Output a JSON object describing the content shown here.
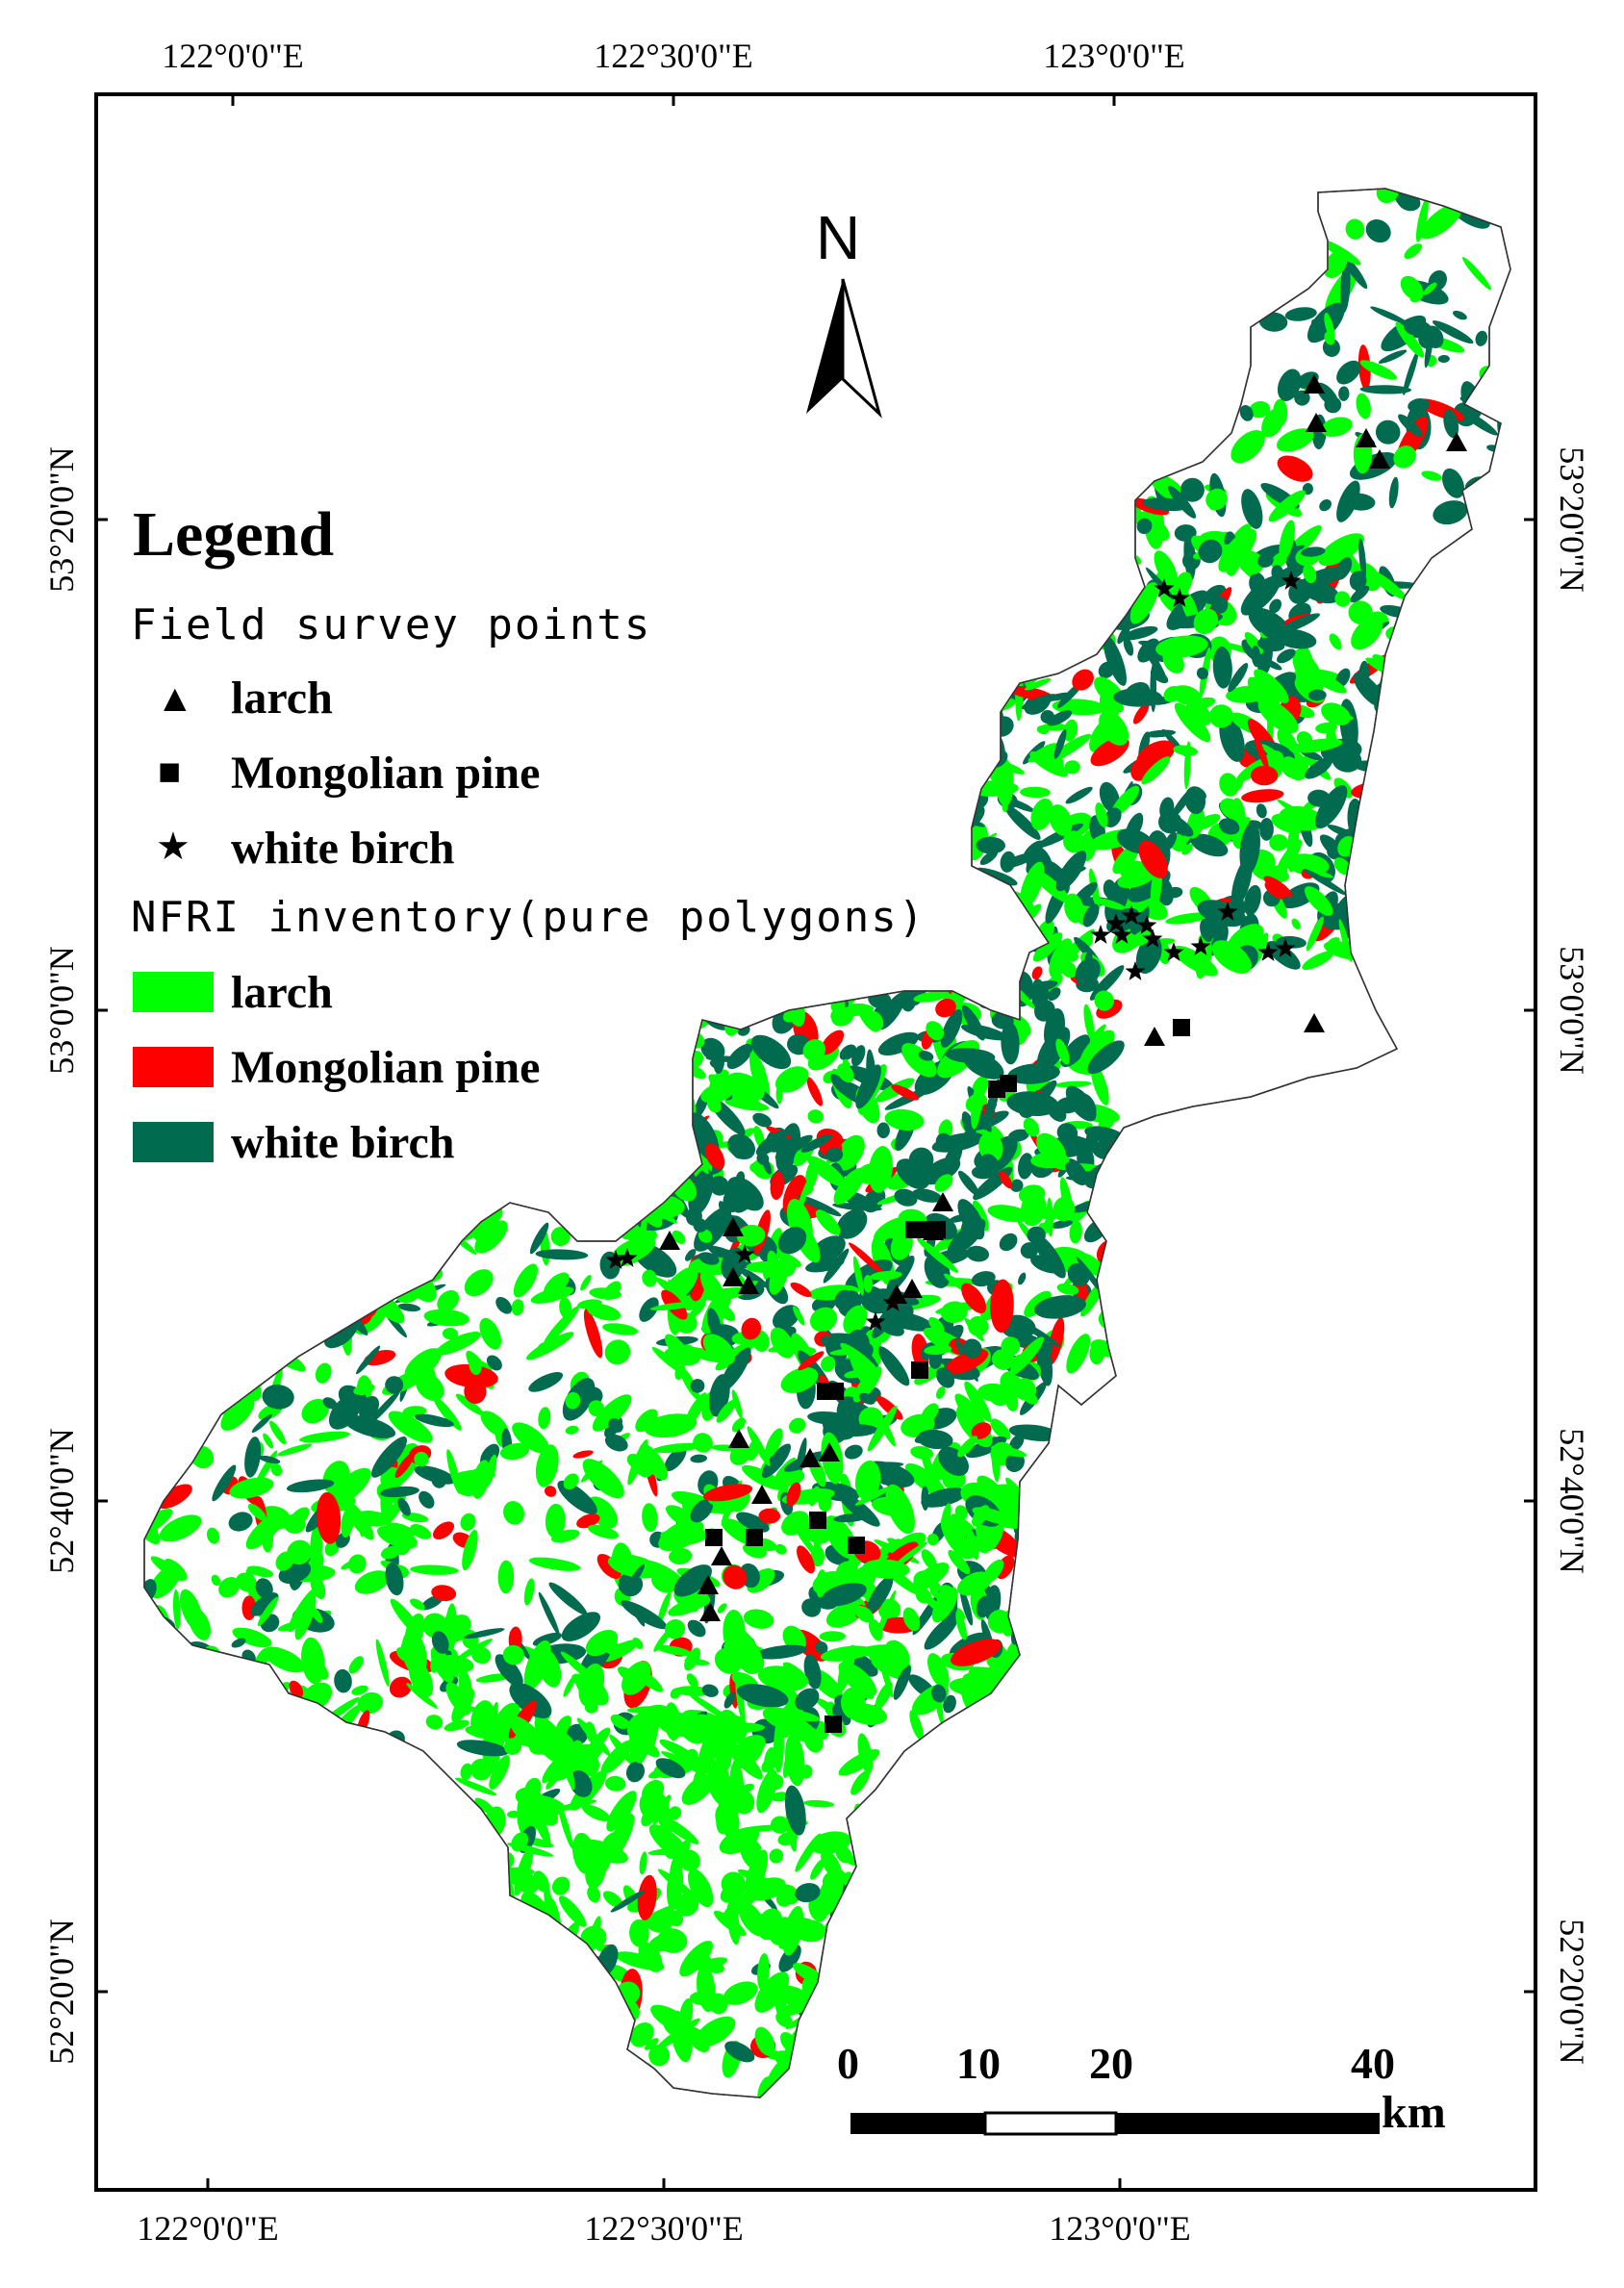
{
  "axes": {
    "top": [
      "122°0'0\"E",
      "122°30'0\"E",
      "123°0'0\"E"
    ],
    "bottom": [
      "122°0'0\"E",
      "122°30'0\"E",
      "123°0'0\"E"
    ],
    "left": [
      "53°20'0\"N",
      "53°0'0\"N",
      "52°40'0\"N",
      "52°20'0\"N"
    ],
    "right": [
      "53°20'0\"N",
      "53°0'0\"N",
      "52°40'0\"N",
      "52°20'0\"N"
    ]
  },
  "north_arrow": {
    "label": "N"
  },
  "legend": {
    "title": "Legend",
    "field_points_heading": "Field survey points",
    "field_points": [
      {
        "label": "larch",
        "symbol": "▲"
      },
      {
        "label": "Mongolian pine",
        "symbol": "■"
      },
      {
        "label": "white birch",
        "symbol": "★"
      }
    ],
    "inventory_heading": "NFRI inventory(pure polygons)",
    "inventory": [
      {
        "label": "larch",
        "color": "#00ff00"
      },
      {
        "label": "Mongolian pine",
        "color": "#ff0000"
      },
      {
        "label": "white birch",
        "color": "#006b4f"
      }
    ]
  },
  "scale_bar": {
    "ticks": [
      "0",
      "10",
      "20",
      "40"
    ],
    "unit": "km"
  },
  "colors": {
    "larch": "#00ff00",
    "pine": "#ff0000",
    "birch": "#006b4f",
    "frame": "#000000"
  }
}
